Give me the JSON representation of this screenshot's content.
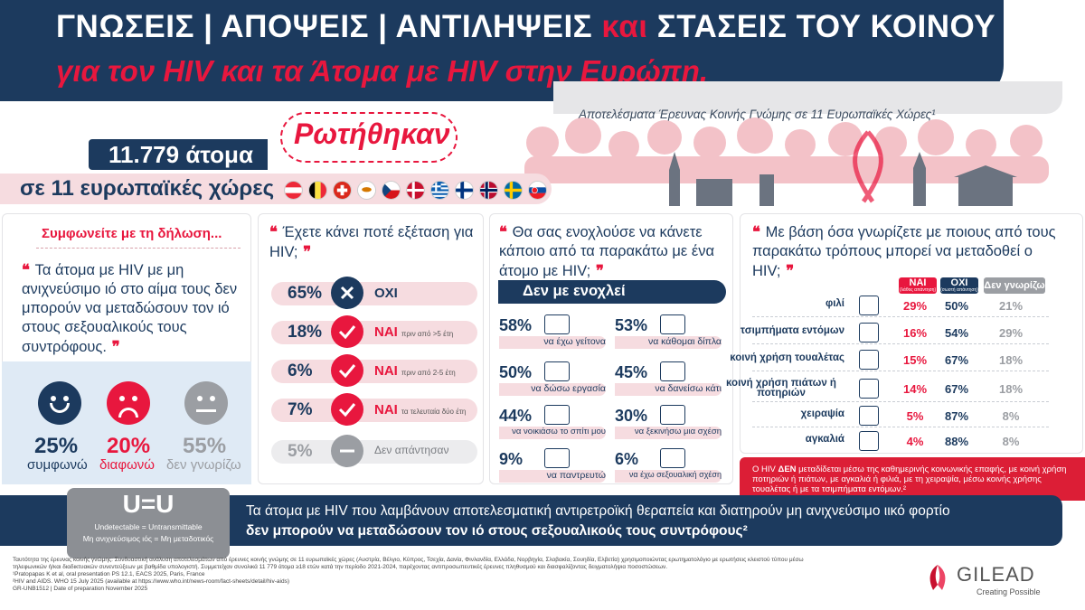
{
  "header": {
    "title_line1_a": "ΓΝΩΣΕΙΣ | ΑΠΟΨΕΙΣ | ΑΝΤΙΛΗΨΕΙΣ ",
    "title_line1_and": "και",
    "title_line1_b": " ΣΤΑΣΕΙΣ ΤΟΥ ΚΟΙΝΟΥ",
    "title_line2": "για τον HIV  και τα Άτομα με HIV στην Ευρώπη.",
    "subtitle": "Αποτελέσματα Έρευνας Κοινής Γνώμης σε 11 Ευρωπαϊκές Χώρες¹",
    "asked": "Ρωτήθηκαν",
    "count": "11.779 άτομα",
    "countries": "σε 11 ευρωπαϊκές χώρες",
    "flags": [
      "austria",
      "belgium",
      "switzerland",
      "cyprus",
      "czechia",
      "denmark",
      "greece",
      "finland",
      "norway",
      "sweden",
      "slovakia"
    ]
  },
  "panel1": {
    "title": "Συμφωνείτε με τη δήλωση...",
    "quote": "Τα άτομα με HIV με μη ανιχνεύσιμο ιό στο αίμα τους δεν μπορούν να μεταδώσουν τον ιό στους σεξουαλικούς τους συντρόφους.",
    "results": [
      {
        "pct": "25%",
        "label": "συμφωνώ",
        "color": "#1c3a5e",
        "mood": "happy"
      },
      {
        "pct": "20%",
        "label": "διαφωνώ",
        "color": "#e8173e",
        "mood": "sad"
      },
      {
        "pct": "55%",
        "label": "δεν γνωρίζω",
        "color": "#9b9ea3",
        "mood": "neutral"
      }
    ]
  },
  "panel2": {
    "question": "Έχετε κάνει ποτέ εξέταση για HIV;",
    "rows": [
      {
        "pct": "65%",
        "label": "ΟΧΙ",
        "sub": "",
        "icon": "x-icon"
      },
      {
        "pct": "18%",
        "label": "ΝΑΙ",
        "sub": "πριν από >5 έτη",
        "icon": "check-icon"
      },
      {
        "pct": "6%",
        "label": "ΝΑΙ",
        "sub": "πριν από 2-5 έτη",
        "icon": "check-icon"
      },
      {
        "pct": "7%",
        "label": "ΝΑΙ",
        "sub": "τα τελευταία δύο έτη",
        "icon": "check-icon"
      },
      {
        "pct": "5%",
        "label": "Δεν απάντησαν",
        "sub": "",
        "icon": "dash-icon"
      }
    ]
  },
  "panel3": {
    "question": "Θα σας ενοχλούσε να κάνετε κάποιο από τα παρακάτω με ένα άτομο με HIV;",
    "bar_label": "Δεν με ενοχλεί",
    "items": [
      {
        "pct": "58%",
        "label": "να έχω γείτονα",
        "icon": "houses-icon"
      },
      {
        "pct": "53%",
        "label": "να κάθομαι δίπλα",
        "icon": "bench-icon"
      },
      {
        "pct": "50%",
        "label": "να δώσω εργασία",
        "icon": "handshake-icon"
      },
      {
        "pct": "45%",
        "label": "να δανείσω κάτι",
        "icon": "box-icon"
      },
      {
        "pct": "44%",
        "label": "να νοικιάσω το σπίτι μου",
        "icon": "key-icon"
      },
      {
        "pct": "30%",
        "label": "να ξεκινήσω μια σχέση",
        "icon": "couple-icon"
      },
      {
        "pct": "9%",
        "label": "να παντρευτώ",
        "icon": "rings-icon"
      },
      {
        "pct": "6%",
        "label": "να έχω σεξουαλική σχέση",
        "icon": "intimacy-icon"
      }
    ]
  },
  "panel4": {
    "question": "Με βάση όσα γνωρίζετε με ποιους από τους παρακάτω τρόπους μπορεί να μεταδοθεί ο HIV;",
    "headers": [
      {
        "label": "ΝΑΙ",
        "sub": "(λάθος απάντηση)",
        "color": "#e8173e"
      },
      {
        "label": "ΟΧΙ",
        "sub": "(σωστή απάντηση)",
        "color": "#1c3a5e"
      },
      {
        "label": "Δεν γνωρίζω",
        "sub": "",
        "color": "#9b9ea3"
      }
    ],
    "rows": [
      {
        "label": "φιλί",
        "icon": "kiss-icon",
        "yes": "29%",
        "no": "50%",
        "dk": "21%"
      },
      {
        "label": "τσιμπήματα εντόμων",
        "icon": "mosquito-icon",
        "yes": "16%",
        "no": "54%",
        "dk": "29%"
      },
      {
        "label": "κοινή χρήση τουαλέτας",
        "icon": "toilet-icon",
        "yes": "15%",
        "no": "67%",
        "dk": "18%"
      },
      {
        "label": "κοινή χρήση πιάτων ή ποτηριών",
        "icon": "dishes-icon",
        "yes": "14%",
        "no": "67%",
        "dk": "18%"
      },
      {
        "label": "χειραψία",
        "icon": "handshake-icon",
        "yes": "5%",
        "no": "87%",
        "dk": "8%"
      },
      {
        "label": "αγκαλιά",
        "icon": "hug-icon",
        "yes": "4%",
        "no": "88%",
        "dk": "8%"
      }
    ],
    "note_prefix": "Ο HIV ",
    "note_bold": "ΔΕΝ",
    "note_rest": " μεταδίδεται μέσω της καθημερινής κοινωνικής επαφής, με κοινή χρήση ποτηριών ή πιάτων, με αγκαλιά ή φιλιά, με τη χειραψία, μέσω κοινής χρήσης τουαλέτας ή με τα τσιμπήματα εντόμων.²"
  },
  "uu": {
    "main": "U=U",
    "sub1": "Undetectable = Untransmittable",
    "sub2": "Μη ανιχνεύσιμος ιός = Μη μεταδοτικός",
    "line1": "Τα άτομα με HIV που λαμβάνουν αποτελεσματική αντιρετροϊκή θεραπεία και διατηρούν μη ανιχνεύσιμο ιικό φορτίο",
    "line2": "δεν μπορούν να μεταδώσουν τον ιό στους σεξουαλικούς τους συντρόφους²"
  },
  "footer": {
    "l1": "Ταυτότητα της έρευνας κοινής γνώμης: Συνδυαστική ανάλυση αποτελεσμάτων από έρευνες κοινής γνώμης σε 11 ευρωπαϊκές χώρες (Αυστρία, Βέλγιο, Κύπρος, Τσεχία, Δανία, Φινλανδία, Ελλάδα, Νορβηγία, Σλοβακία, Σουηδία, Ελβετία) χρησιμοποιώντας ερωτηματολόγιο με ερωτήσεις κλειστού τύπου μέσω",
    "l2": "τηλεφωνικών ή/και διαδικτυακών συνεντεύξεων με βαθμίδα υπολογιστή. Συμμετείχαν συνολικά 11 779 άτομα ≥18 ετών κατά την περίοδο 2021-2024, παρέχοντας αντιπροσωπευτικές έρευνες πληθυσμού και διασφαλίζοντας δειγματολήψια ποσοστώσεων.",
    "l3": "¹Pratopapas K et al, oral presentation PS 12.1, EACS 2025, Paris, France",
    "l4": "²HIV and AIDS. WHO 15 July 2025 (available at https://www.who.int/news-room/fact-sheets/detail/hiv-aids)",
    "l5": "GR-UNB1512 | Date of preparation November 2025",
    "brand": "GILEAD",
    "tagline": "Creating Possible"
  },
  "colors": {
    "navy": "#1c3a5e",
    "red": "#e8173e",
    "grey": "#9b9ea3",
    "pink": "#f6dce0",
    "light_blue": "#dfeaf5"
  }
}
